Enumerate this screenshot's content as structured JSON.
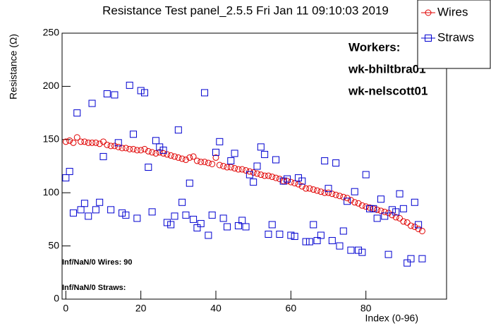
{
  "chart_data": {
    "type": "scatter",
    "title": "Resistance Test panel_2.5.5 Fri Jan 11 09:10:03 2019",
    "x_label": "Index (0-96)",
    "y_label": "Resistance (Ω)",
    "xlim": [
      -1,
      101.5
    ],
    "ylim": [
      0,
      250
    ],
    "xticks": [
      0,
      20,
      40,
      60,
      80
    ],
    "yticks": [
      0,
      50,
      100,
      150,
      200,
      250
    ],
    "x": [
      0,
      1,
      2,
      3,
      4,
      5,
      6,
      7,
      8,
      9,
      10,
      11,
      12,
      13,
      14,
      15,
      16,
      17,
      18,
      19,
      20,
      21,
      22,
      23,
      24,
      25,
      26,
      27,
      28,
      29,
      30,
      31,
      32,
      33,
      34,
      35,
      36,
      37,
      38,
      39,
      40,
      41,
      42,
      43,
      44,
      45,
      46,
      47,
      48,
      49,
      50,
      51,
      52,
      53,
      54,
      55,
      56,
      57,
      58,
      59,
      60,
      61,
      62,
      63,
      64,
      65,
      66,
      67,
      68,
      69,
      70,
      71,
      72,
      73,
      74,
      75,
      76,
      77,
      78,
      79,
      80,
      81,
      82,
      83,
      84,
      85,
      86,
      87,
      88,
      89,
      90,
      91,
      92,
      93,
      94,
      95
    ],
    "series": [
      {
        "name": "Wires",
        "color": "#e00000",
        "marker": "circle",
        "values": [
          148,
          149,
          147,
          152,
          148,
          148,
          147,
          147,
          147,
          146,
          148,
          145,
          144,
          144,
          143,
          142,
          142,
          141,
          141,
          140,
          140,
          141,
          139,
          138,
          137,
          138,
          137,
          136,
          135,
          134,
          133,
          132,
          131,
          133,
          134,
          130,
          129,
          129,
          128,
          127,
          133,
          126,
          125,
          124,
          124,
          123,
          122,
          122,
          121,
          120,
          119,
          118,
          117,
          116,
          116,
          115,
          114,
          113,
          111,
          111,
          110,
          109,
          108,
          106,
          104,
          104,
          103,
          102,
          101,
          100,
          100,
          99,
          98,
          97,
          96,
          95,
          93,
          91,
          90,
          88,
          87,
          86,
          85,
          84,
          83,
          82,
          81,
          79,
          77,
          76,
          73,
          72,
          69,
          68,
          66,
          64
        ]
      },
      {
        "name": "Straws",
        "color": "#0000d0",
        "marker": "square",
        "values": [
          114,
          120,
          81,
          175,
          84,
          90,
          78,
          184,
          84,
          91,
          134,
          193,
          84,
          192,
          147,
          81,
          79,
          201,
          155,
          76,
          196,
          194,
          124,
          82,
          149,
          143,
          140,
          72,
          70,
          78,
          159,
          91,
          79,
          109,
          75,
          67,
          71,
          194,
          60,
          79,
          138,
          148,
          76,
          68,
          130,
          137,
          69,
          74,
          68,
          117,
          110,
          125,
          143,
          136,
          61,
          70,
          131,
          61,
          111,
          113,
          60,
          59,
          114,
          111,
          54,
          54,
          70,
          55,
          60,
          130,
          104,
          55,
          128,
          50,
          64,
          92,
          46,
          101,
          46,
          44,
          117,
          85,
          85,
          76,
          94,
          78,
          42,
          84,
          82,
          99,
          85,
          34,
          38,
          91,
          70,
          38
        ]
      }
    ],
    "annotations": [
      "Workers:",
      "wk-bhiltbra01",
      "wk-nelscott01",
      "Inf/NaN/0 Wires: 90",
      "Inf/NaN/0 Straws:"
    ],
    "legend": "top-right"
  }
}
